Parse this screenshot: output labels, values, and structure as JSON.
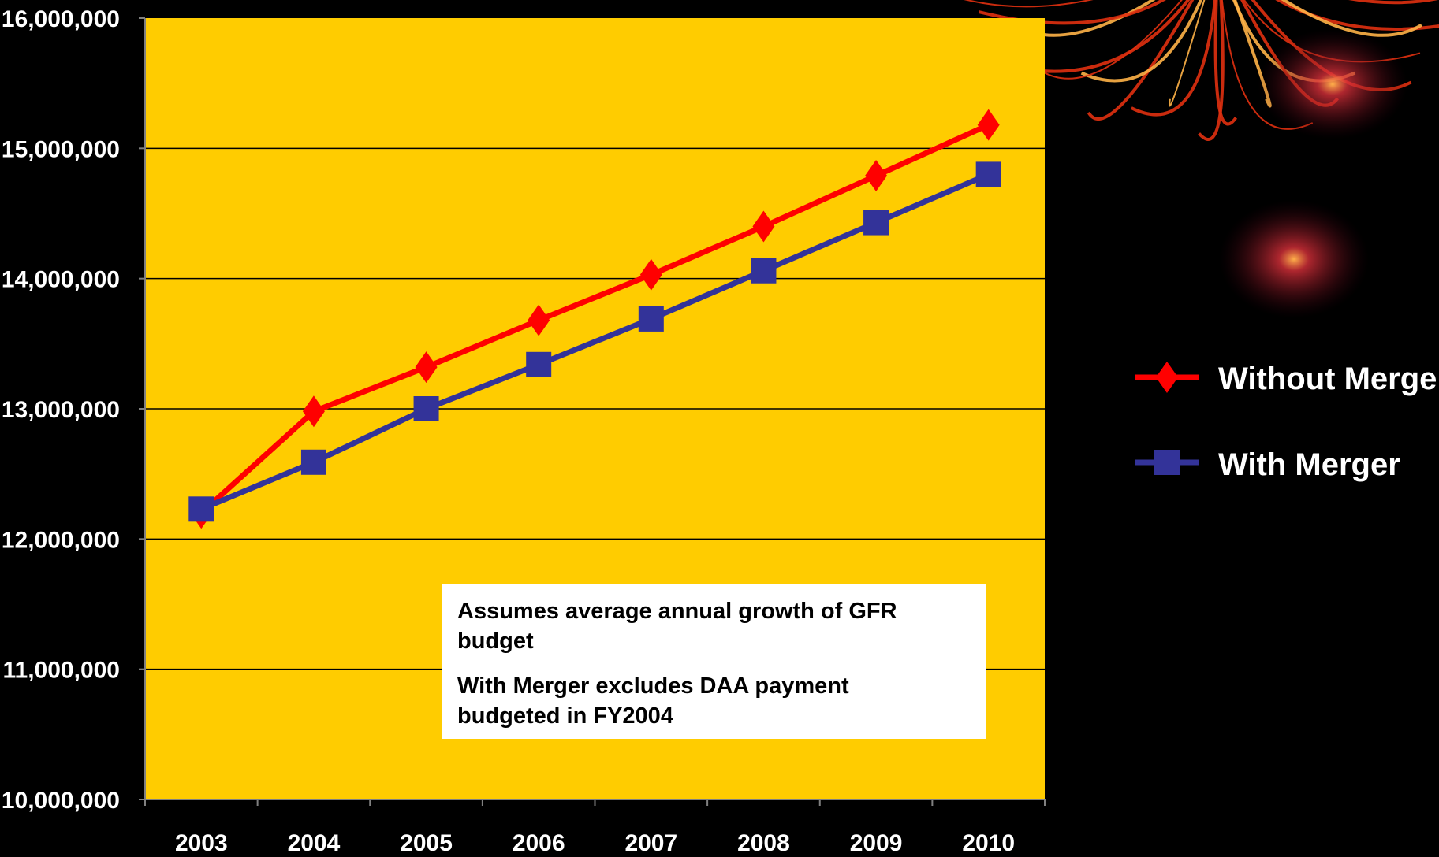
{
  "colors": {
    "background": "#000000",
    "plot_area": "#ffcc00",
    "without_merger": "#ff0000",
    "with_merger": "#333399",
    "gridline": "#000000",
    "note_box": "#ffffff",
    "text": "#ffffff"
  },
  "chart_data": {
    "type": "line",
    "title": "",
    "xlabel": "",
    "ylabel": "",
    "x": [
      "2003",
      "2004",
      "2005",
      "2006",
      "2007",
      "2008",
      "2009",
      "2010"
    ],
    "ylim": [
      10000000,
      16000000
    ],
    "y_ticks": [
      "10,000,000",
      "11,000,000",
      "12,000,000",
      "13,000,000",
      "14,000,000",
      "15,000,000",
      "16,000,000"
    ],
    "y_tick_values": [
      10000000,
      11000000,
      12000000,
      13000000,
      14000000,
      15000000,
      16000000
    ],
    "grid": true,
    "legend_position": "right",
    "series": [
      {
        "name": "Without Merger",
        "marker": "diamond",
        "color": "#ff0000",
        "values": [
          12200000,
          12980000,
          13320000,
          13680000,
          14030000,
          14400000,
          14790000,
          15180000
        ]
      },
      {
        "name": "With Merger",
        "marker": "square",
        "color": "#333399",
        "values": [
          12230000,
          12590000,
          13000000,
          13340000,
          13690000,
          14060000,
          14430000,
          14800000
        ]
      }
    ]
  },
  "note": {
    "lines": [
      "Assumes average annual  growth of GFR",
      "budget",
      "With Merger excludes DAA payment",
      "budgeted in FY2004"
    ]
  }
}
